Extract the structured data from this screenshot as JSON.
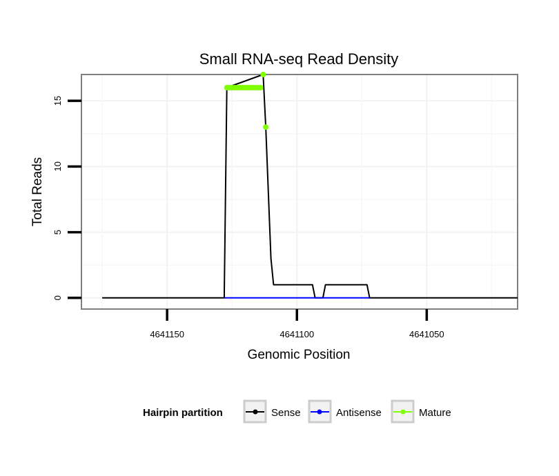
{
  "chart_data": {
    "type": "line",
    "title": "Small RNA-seq Read Density",
    "xlabel": "Genomic Position",
    "ylabel": "Total Reads",
    "x_reversed": true,
    "xlim": [
      4641183,
      4641015
    ],
    "ylim": [
      -0.85,
      17.0
    ],
    "x_ticks": [
      4641150,
      4641100,
      4641050
    ],
    "x_tick_labels": [
      "4641150",
      "4641100",
      "4641050"
    ],
    "y_ticks": [
      0,
      5,
      10,
      15
    ],
    "y_tick_labels": [
      "0",
      "5",
      "10",
      "15"
    ],
    "legend": {
      "title": "Hairpin partition",
      "position": "bottom",
      "entries": [
        {
          "name": "Sense",
          "color": "#000000"
        },
        {
          "name": "Antisense",
          "color": "#0000ff"
        },
        {
          "name": "Mature",
          "color": "#7fff00"
        }
      ]
    },
    "series": [
      {
        "name": "Sense",
        "color": "#000000",
        "points": [
          [
            4641175,
            0
          ],
          [
            4641128,
            0
          ],
          [
            4641127,
            16
          ],
          [
            4641113,
            17
          ],
          [
            4641112,
            13
          ],
          [
            4641110,
            3
          ],
          [
            4641109,
            1
          ],
          [
            4641094,
            1
          ],
          [
            4641093,
            0
          ],
          [
            4641090,
            0
          ],
          [
            4641089,
            1
          ],
          [
            4641073,
            1
          ],
          [
            4641072,
            0
          ],
          [
            4641015,
            0
          ]
        ]
      },
      {
        "name": "Antisense",
        "color": "#0000ff",
        "points": [
          [
            4641128,
            0
          ],
          [
            4641072,
            0
          ]
        ]
      },
      {
        "name": "Mature",
        "color": "#7fff00",
        "points": [
          [
            4641127,
            16
          ],
          [
            4641126,
            16
          ],
          [
            4641125,
            16
          ],
          [
            4641124,
            16
          ],
          [
            4641123,
            16
          ],
          [
            4641122,
            16
          ],
          [
            4641121,
            16
          ],
          [
            4641120,
            16
          ],
          [
            4641119,
            16
          ],
          [
            4641118,
            16
          ],
          [
            4641117,
            16
          ],
          [
            4641116,
            16
          ],
          [
            4641115,
            16
          ],
          [
            4641114,
            16
          ],
          [
            4641113,
            17
          ],
          [
            4641112,
            13
          ]
        ]
      }
    ]
  }
}
